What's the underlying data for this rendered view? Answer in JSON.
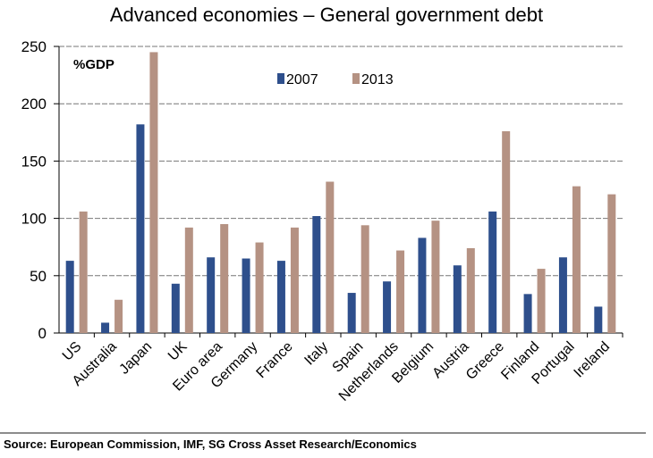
{
  "title": "Advanced economies – General government debt",
  "source": "Source: European Commission, IMF, SG Cross Asset Research/Economics",
  "colors": {
    "s2007": "#2e4f8c",
    "s2013": "#b59283",
    "grid": "#777777"
  },
  "chart_data": {
    "type": "bar",
    "title": "Advanced economies – General government debt",
    "unit_label": "%GDP",
    "categories": [
      "US",
      "Australia",
      "Japan",
      "UK",
      "Euro area",
      "Germany",
      "France",
      "Italy",
      "Spain",
      "Netherlands",
      "Belgium",
      "Austria",
      "Greece",
      "Finland",
      "Portugal",
      "Ireland"
    ],
    "series": [
      {
        "name": "2007",
        "values": [
          63,
          9,
          182,
          43,
          66,
          65,
          63,
          102,
          35,
          45,
          83,
          59,
          106,
          34,
          66,
          23
        ]
      },
      {
        "name": "2013",
        "values": [
          106,
          29,
          245,
          92,
          95,
          79,
          92,
          132,
          94,
          72,
          98,
          74,
          176,
          56,
          128,
          121
        ]
      }
    ],
    "ylim": [
      0,
      250
    ],
    "yticks": [
      0,
      50,
      100,
      150,
      200,
      250
    ],
    "grid": true,
    "legend_position": "top-center"
  }
}
